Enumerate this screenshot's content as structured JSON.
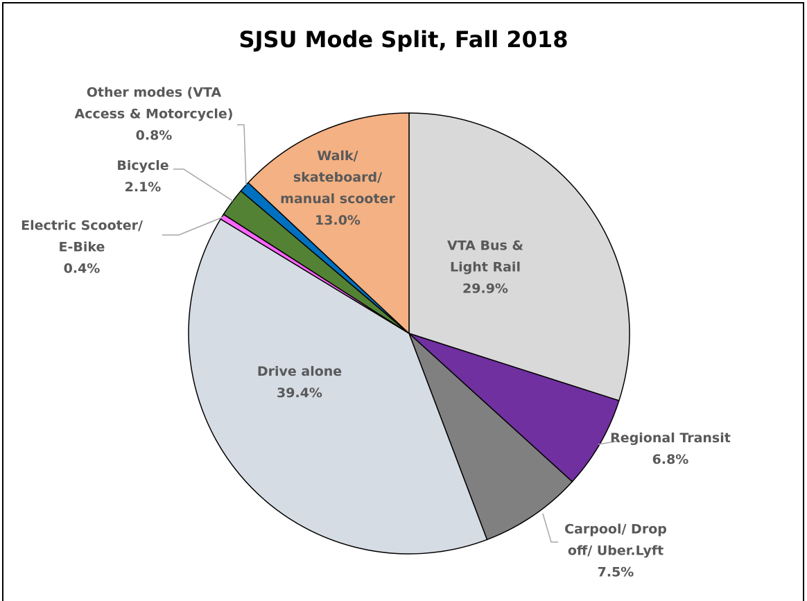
{
  "chart_data": {
    "type": "pie",
    "title": "SJSU Mode Split, Fall 2018",
    "categories": [
      "VTA Bus &\nLight Rail",
      "Regional Transit",
      "Carpool/ Drop\noff/ Uber.Lyft",
      "Drive alone",
      "Electric Scooter/\nE-Bike",
      "Bicycle",
      "Other modes (VTA\nAccess & Motorcycle)",
      "Walk/\nskateboard/\nmanual scooter"
    ],
    "values": [
      29.9,
      6.8,
      7.5,
      39.4,
      0.4,
      2.1,
      0.8,
      13.0
    ],
    "value_labels": [
      "29.9%",
      "6.8%",
      "7.5%",
      "39.4%",
      "0.4%",
      "2.1%",
      "0.8%",
      "13.0%"
    ],
    "colors": [
      "#d9d9d9",
      "#7030a0",
      "#808080",
      "#d6dce4",
      "#ff66ff",
      "#548235",
      "#0070c0",
      "#f4b183"
    ]
  }
}
